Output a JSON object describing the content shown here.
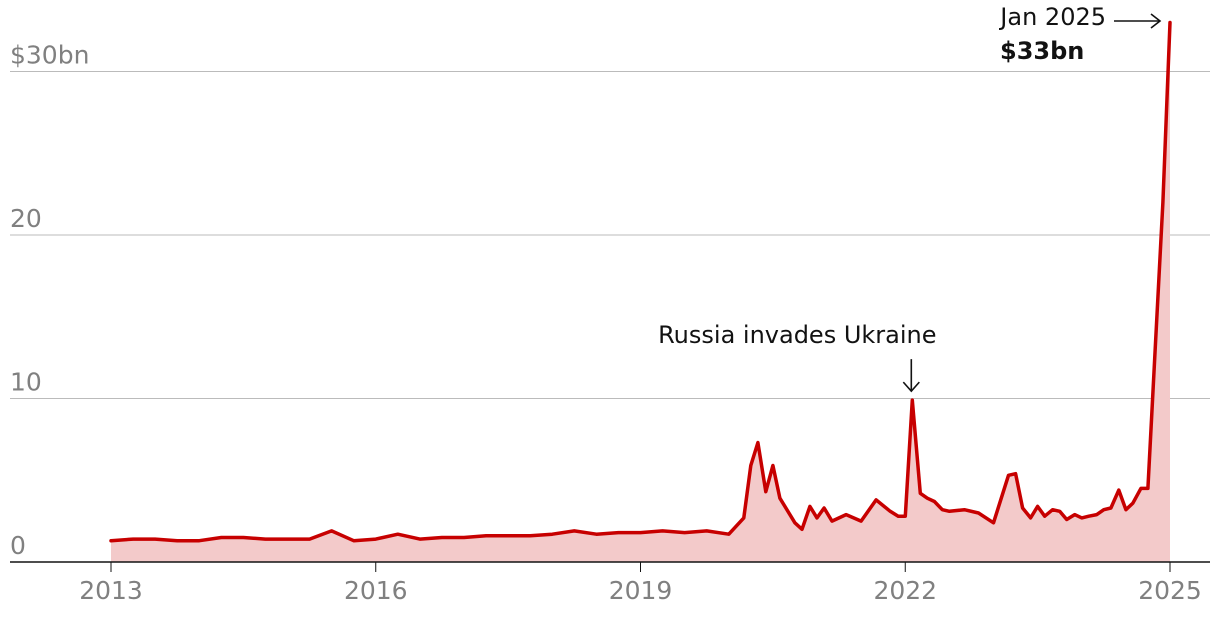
{
  "chart_data": {
    "type": "area",
    "title": "",
    "xlabel": "",
    "ylabel": "",
    "y_unit_label": "$30bn",
    "ylim": [
      0,
      30
    ],
    "y_ticks": [
      {
        "value": 0,
        "label": "0"
      },
      {
        "value": 10,
        "label": "10"
      },
      {
        "value": 20,
        "label": "20"
      },
      {
        "value": 30,
        "label": "$30bn"
      }
    ],
    "x_ticks": [
      {
        "value": 2013,
        "label": "2013"
      },
      {
        "value": 2016,
        "label": "2016"
      },
      {
        "value": 2019,
        "label": "2019"
      },
      {
        "value": 2022,
        "label": "2022"
      },
      {
        "value": 2025,
        "label": "2025"
      }
    ],
    "grid": true,
    "series": [
      {
        "name": "",
        "x": [
          2013.0,
          2013.25,
          2013.5,
          2013.75,
          2014.0,
          2014.25,
          2014.5,
          2014.75,
          2015.0,
          2015.25,
          2015.5,
          2015.75,
          2016.0,
          2016.25,
          2016.5,
          2016.75,
          2017.0,
          2017.25,
          2017.5,
          2017.75,
          2018.0,
          2018.25,
          2018.5,
          2018.75,
          2019.0,
          2019.25,
          2019.5,
          2019.75,
          2020.0,
          2020.17,
          2020.25,
          2020.33,
          2020.42,
          2020.5,
          2020.58,
          2020.75,
          2020.83,
          2020.92,
          2021.0,
          2021.08,
          2021.17,
          2021.33,
          2021.5,
          2021.67,
          2021.83,
          2021.92,
          2022.0,
          2022.08,
          2022.17,
          2022.25,
          2022.33,
          2022.42,
          2022.5,
          2022.67,
          2022.83,
          2023.0,
          2023.17,
          2023.25,
          2023.33,
          2023.42,
          2023.5,
          2023.58,
          2023.67,
          2023.75,
          2023.83,
          2023.92,
          2024.0,
          2024.08,
          2024.17,
          2024.25,
          2024.33,
          2024.42,
          2024.5,
          2024.58,
          2024.67,
          2024.75,
          2024.83,
          2024.92,
          2025.0
        ],
        "values": [
          1.3,
          1.4,
          1.4,
          1.3,
          1.3,
          1.5,
          1.5,
          1.4,
          1.4,
          1.4,
          1.9,
          1.3,
          1.4,
          1.7,
          1.4,
          1.5,
          1.5,
          1.6,
          1.6,
          1.6,
          1.7,
          1.9,
          1.7,
          1.8,
          1.8,
          1.9,
          1.8,
          1.9,
          1.7,
          2.7,
          5.9,
          7.3,
          4.3,
          5.9,
          3.9,
          2.4,
          2.0,
          3.4,
          2.7,
          3.3,
          2.5,
          2.9,
          2.5,
          3.8,
          3.1,
          2.8,
          2.8,
          9.9,
          4.2,
          3.9,
          3.7,
          3.2,
          3.1,
          3.2,
          3.0,
          2.4,
          5.3,
          5.4,
          3.3,
          2.7,
          3.4,
          2.8,
          3.2,
          3.1,
          2.6,
          2.9,
          2.7,
          2.8,
          2.9,
          3.2,
          3.3,
          4.4,
          3.2,
          3.6,
          4.5,
          4.5,
          12.8,
          22.0,
          33.0
        ]
      }
    ],
    "colors": {
      "line": "#c70000",
      "fill": "#f3caca",
      "grid": "#bbbbbb",
      "axis": "#121212",
      "tick_text": "#808080",
      "annotation_text": "#121212"
    },
    "annotations": [
      {
        "text": "Russia invades Ukraine",
        "x": 2022.08,
        "y": 9.9,
        "arrow": "down"
      },
      {
        "text": "Jan 2025",
        "value_text": "$33bn",
        "x": 2025.0,
        "y": 33.0,
        "arrow": "right"
      }
    ]
  }
}
